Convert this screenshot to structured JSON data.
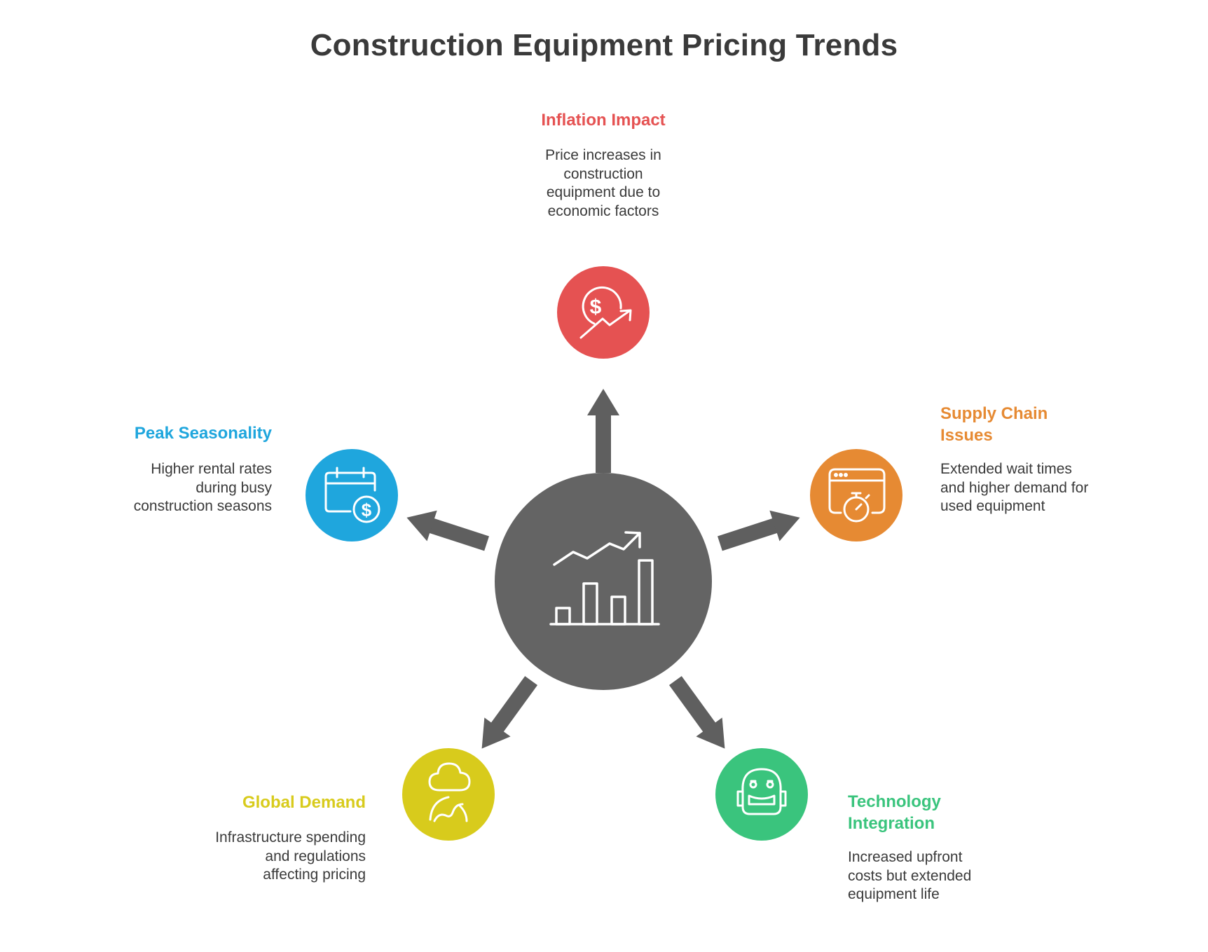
{
  "title": "Construction Equipment Pricing Trends",
  "colors": {
    "hub": "#646464",
    "arrow": "#5f5f5f",
    "inflation": "#e55252",
    "supply": "#e68a33",
    "technology": "#3ac47d",
    "global": "#d8cb1c",
    "peak": "#1fa6dd",
    "text": "#3a3a3a"
  },
  "hub": {
    "icon": "bar-chart-trend-icon"
  },
  "items": [
    {
      "key": "inflation",
      "heading": "Inflation Impact",
      "description": [
        "Price increases in",
        "construction",
        "equipment due to",
        "economic factors"
      ],
      "icon": "dollar-trend-up-icon"
    },
    {
      "key": "supply",
      "heading": [
        "Supply Chain",
        "Issues"
      ],
      "description": [
        "Extended wait times",
        "and higher demand for",
        "used equipment"
      ],
      "icon": "browser-stopwatch-icon"
    },
    {
      "key": "technology",
      "heading": [
        "Technology",
        "Integration"
      ],
      "description": [
        "Increased upfront",
        "costs but extended",
        "equipment life"
      ],
      "icon": "robot-icon"
    },
    {
      "key": "global",
      "heading": "Global Demand",
      "description": [
        "Infrastructure spending",
        "and regulations",
        "affecting pricing"
      ],
      "icon": "cloud-globe-icon"
    },
    {
      "key": "peak",
      "heading": "Peak Seasonality",
      "description": [
        "Higher rental rates",
        "during busy",
        "construction seasons"
      ],
      "icon": "calendar-dollar-icon"
    }
  ]
}
